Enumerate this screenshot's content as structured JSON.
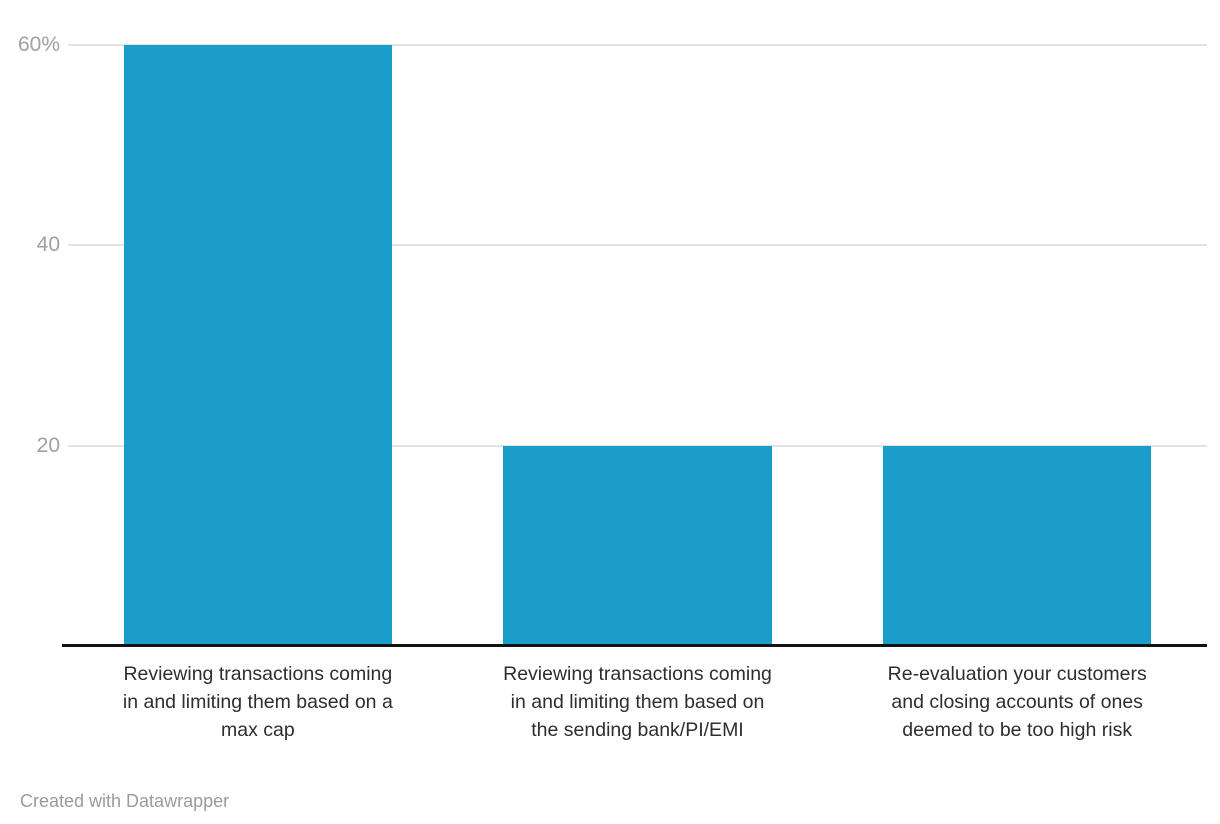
{
  "chart_data": {
    "type": "bar",
    "title": "",
    "xlabel": "",
    "ylabel": "",
    "categories": [
      "Reviewing transactions coming in and limiting them based on a max cap",
      "Reviewing transactions coming in and limiting them based on the sending bank/PI/EMI",
      "Re-evaluation your customers and closing accounts of ones deemed to be too high risk"
    ],
    "category_lines": [
      [
        "Reviewing transactions coming",
        "in and limiting them based on a",
        "max cap"
      ],
      [
        "Reviewing transactions coming",
        "in and limiting them based on",
        "the sending bank/PI/EMI"
      ],
      [
        "Re-evaluation your customers",
        "and closing accounts of ones",
        "deemed to be too high risk"
      ]
    ],
    "values": [
      60,
      20,
      20
    ],
    "unit": "%",
    "yticks": [
      {
        "value": 20,
        "label": "20"
      },
      {
        "value": 40,
        "label": "40"
      },
      {
        "value": 60,
        "label": "60%"
      }
    ],
    "ylim": [
      0,
      64.5
    ],
    "grid": true,
    "legend": "none",
    "bar_color": "#1a9ec9"
  },
  "footer": {
    "credit": "Created with Datawrapper"
  },
  "colors": {
    "bar": "#1a9ec9",
    "gridline": "#e3e3e3",
    "axis_line": "#131313",
    "tick_label": "#a1a1a1",
    "category_label": "#2e2e2e",
    "credit_text": "#9b9b9b",
    "background": "#ffffff"
  }
}
